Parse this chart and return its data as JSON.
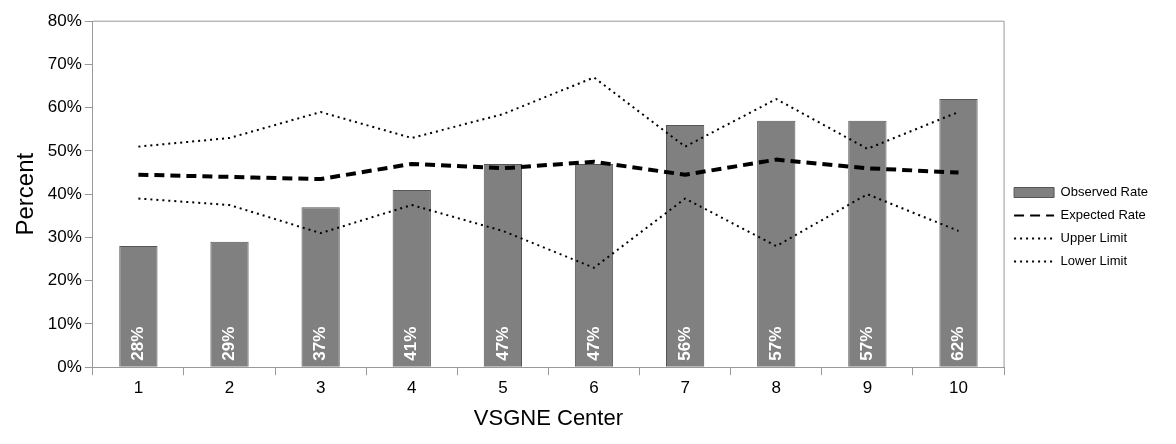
{
  "chart_data": {
    "type": "bar",
    "xlabel": "VSGNE Center",
    "ylabel": "Percent",
    "categories": [
      "1",
      "2",
      "3",
      "4",
      "5",
      "6",
      "7",
      "8",
      "9",
      "10"
    ],
    "series": [
      {
        "name": "Observed Rate",
        "color": "#808080",
        "values": [
          28,
          29,
          37,
          41,
          47,
          47,
          56,
          57,
          57,
          62
        ],
        "value_labels": [
          "28%",
          "29%",
          "37%",
          "41%",
          "47%",
          "47%",
          "56%",
          "57%",
          "57%",
          "62%"
        ]
      },
      {
        "name": "Expected Rate",
        "type": "line",
        "color": "#000000",
        "line_style": "dashed",
        "values": [
          44.5,
          44,
          43.5,
          47,
          46,
          47.5,
          44.5,
          48,
          46,
          45
        ]
      },
      {
        "name": "Upper Limit",
        "type": "line",
        "color": "#000000",
        "line_style": "dotted",
        "values": [
          51,
          53,
          59,
          53,
          58.5,
          67,
          51,
          62,
          50.5,
          59
        ]
      },
      {
        "name": "Lower Limit",
        "type": "line",
        "color": "#000000",
        "line_style": "dotted",
        "values": [
          39,
          37.5,
          31,
          37.5,
          31.5,
          23,
          39,
          28,
          40,
          31.5
        ]
      }
    ],
    "ylim": [
      0,
      80
    ],
    "yticks": [
      {
        "value": 0,
        "label": "0%"
      },
      {
        "value": 10,
        "label": "10%"
      },
      {
        "value": 20,
        "label": "20%"
      },
      {
        "value": 30,
        "label": "30%"
      },
      {
        "value": 40,
        "label": "40%"
      },
      {
        "value": 50,
        "label": "50%"
      },
      {
        "value": 60,
        "label": "60%"
      },
      {
        "value": 70,
        "label": "70%"
      },
      {
        "value": 80,
        "label": "80%"
      }
    ],
    "grid": false,
    "legend": "right",
    "marker": "none"
  }
}
